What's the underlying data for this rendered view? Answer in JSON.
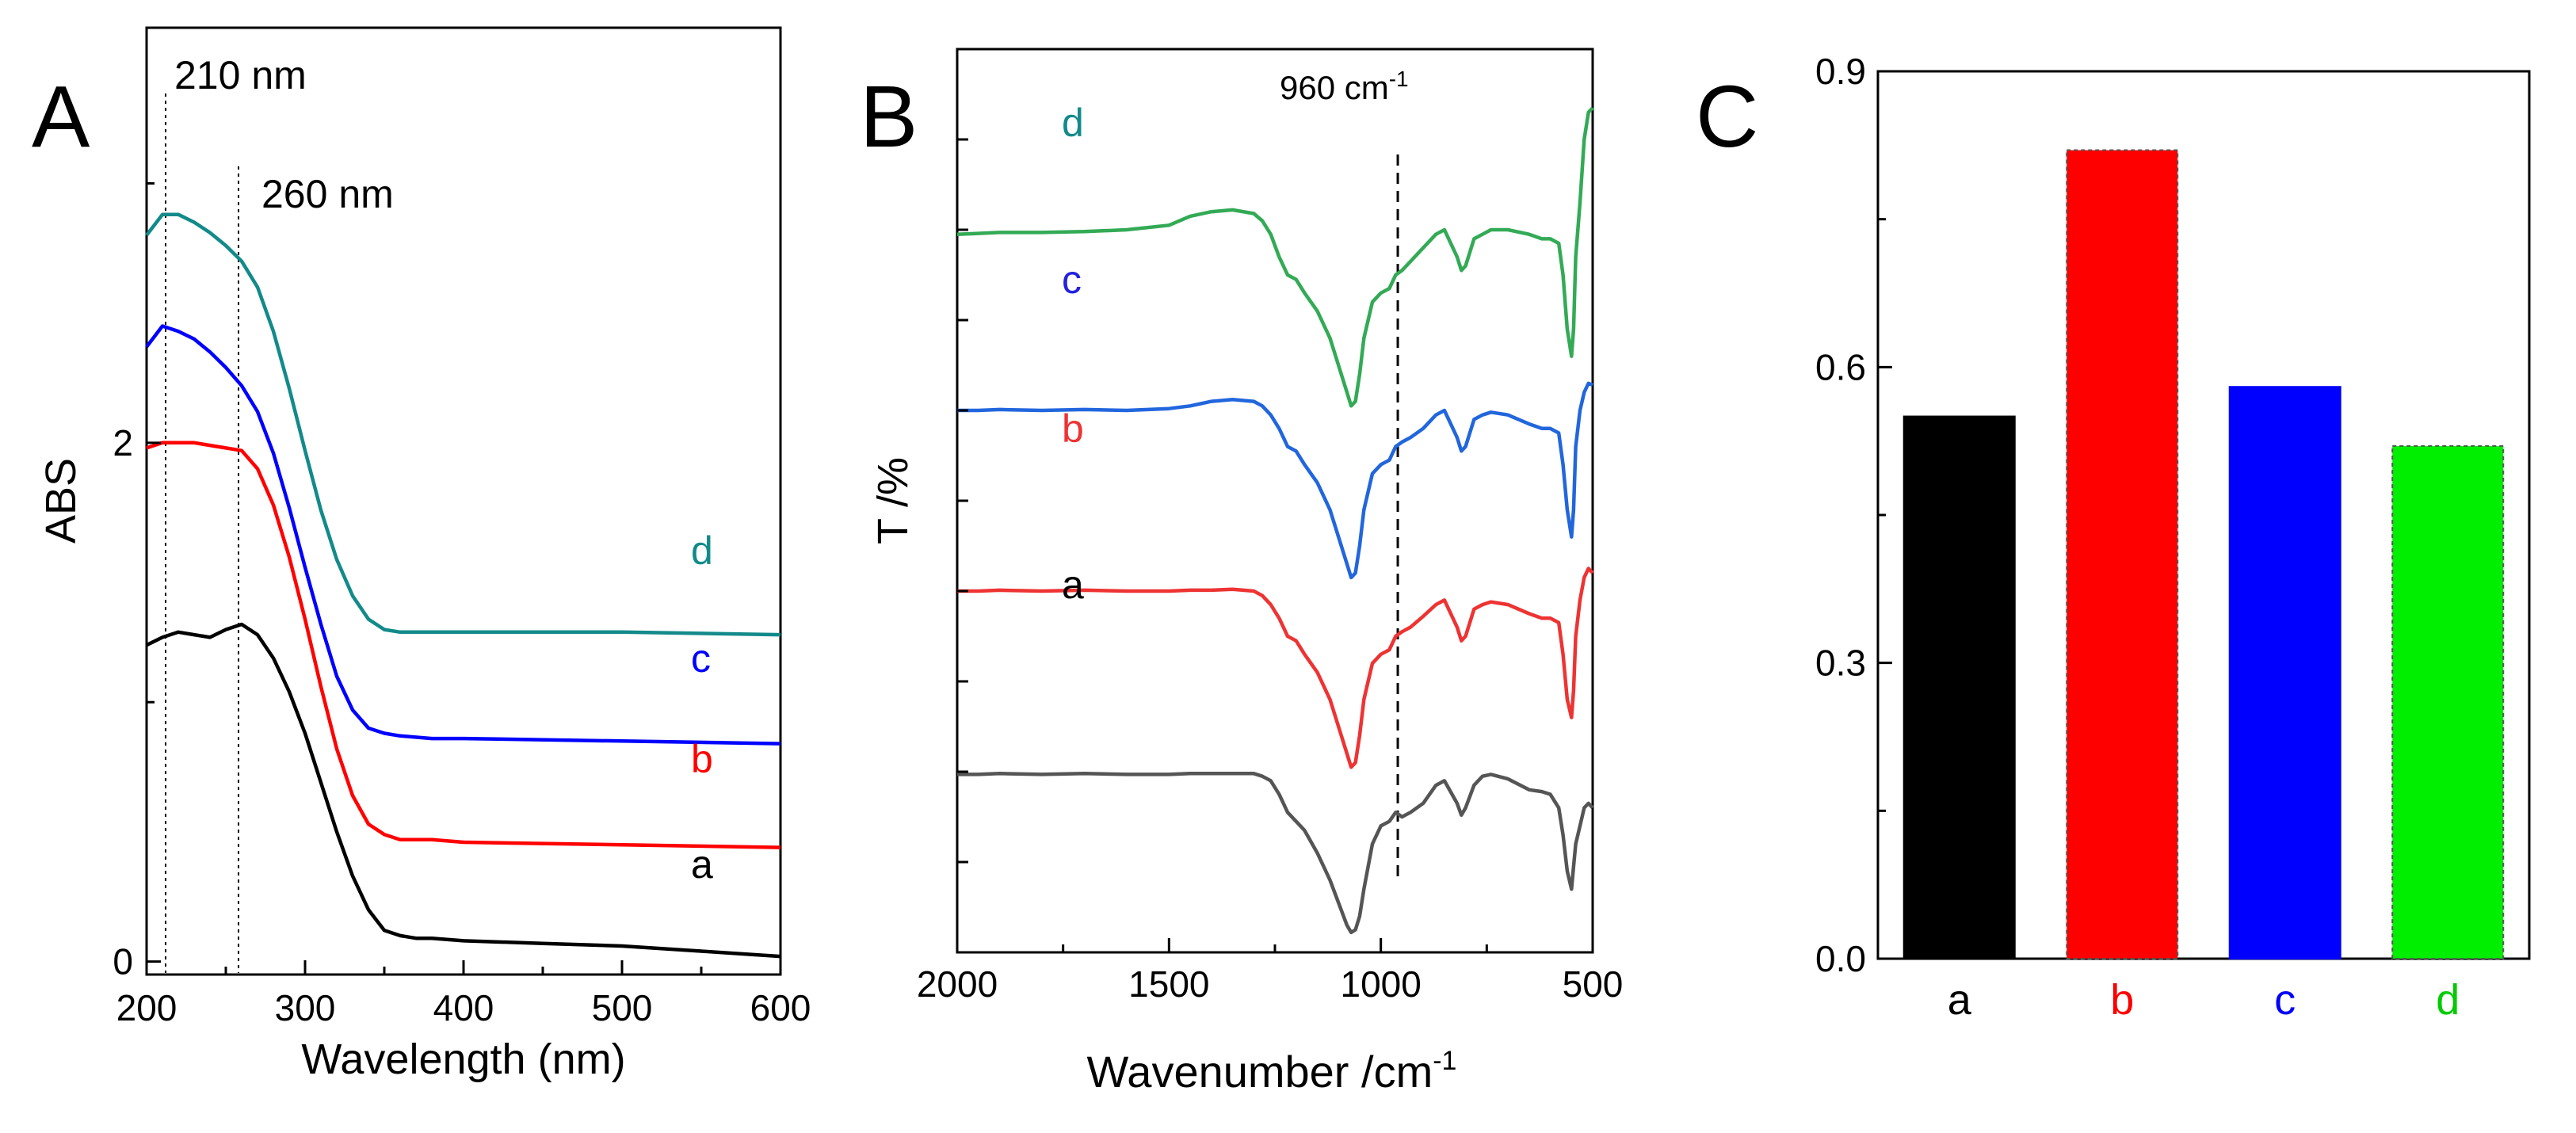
{
  "figure": {
    "panels": [
      {
        "id": "A",
        "type": "line",
        "label": "A"
      },
      {
        "id": "B",
        "type": "line",
        "label": "B"
      },
      {
        "id": "C",
        "type": "bar",
        "label": "C"
      }
    ]
  },
  "chart_data": [
    {
      "panel": "A",
      "type": "line",
      "title": "",
      "xlabel": "Wavelength (nm)",
      "ylabel": "ABS",
      "xlim": [
        200,
        600
      ],
      "ylim": [
        -0.05,
        3.6
      ],
      "xticks": [
        200,
        300,
        400,
        500,
        600
      ],
      "xtick_labels": [
        "200",
        "300",
        "400",
        "500",
        "600"
      ],
      "yticks": [
        0,
        2
      ],
      "ytick_labels": [
        "0",
        "2"
      ],
      "reference_lines": [
        {
          "x": 212,
          "label": "210 nm"
        },
        {
          "x": 258,
          "label": "260 nm"
        }
      ],
      "series": [
        {
          "name": "a",
          "color": "#000000",
          "x": [
            200,
            210,
            220,
            230,
            240,
            250,
            260,
            270,
            280,
            290,
            300,
            310,
            320,
            330,
            340,
            350,
            360,
            370,
            380,
            400,
            450,
            500,
            550,
            600
          ],
          "y": [
            1.22,
            1.25,
            1.27,
            1.26,
            1.25,
            1.28,
            1.3,
            1.26,
            1.17,
            1.04,
            0.88,
            0.69,
            0.5,
            0.33,
            0.2,
            0.12,
            0.1,
            0.09,
            0.09,
            0.08,
            0.07,
            0.06,
            0.04,
            0.02
          ]
        },
        {
          "name": "b",
          "color": "#ff0000",
          "x": [
            200,
            210,
            220,
            230,
            240,
            250,
            260,
            270,
            280,
            290,
            300,
            310,
            320,
            330,
            340,
            350,
            360,
            380,
            400,
            500,
            600
          ],
          "y": [
            1.98,
            2.0,
            2.0,
            2.0,
            1.99,
            1.98,
            1.97,
            1.9,
            1.76,
            1.56,
            1.32,
            1.06,
            0.82,
            0.64,
            0.53,
            0.49,
            0.47,
            0.47,
            0.46,
            0.45,
            0.44
          ]
        },
        {
          "name": "c",
          "color": "#0000ff",
          "x": [
            200,
            210,
            220,
            230,
            240,
            250,
            260,
            270,
            280,
            290,
            300,
            310,
            320,
            330,
            340,
            350,
            360,
            380,
            400,
            500,
            600
          ],
          "y": [
            2.37,
            2.45,
            2.43,
            2.4,
            2.35,
            2.29,
            2.22,
            2.12,
            1.96,
            1.75,
            1.52,
            1.3,
            1.1,
            0.97,
            0.9,
            0.88,
            0.87,
            0.86,
            0.86,
            0.85,
            0.84
          ]
        },
        {
          "name": "d",
          "color": "#138a8a",
          "x": [
            200,
            210,
            220,
            230,
            240,
            250,
            260,
            270,
            280,
            290,
            300,
            310,
            320,
            330,
            340,
            350,
            360,
            370,
            380,
            400,
            500,
            600
          ],
          "y": [
            2.8,
            2.88,
            2.88,
            2.85,
            2.81,
            2.76,
            2.7,
            2.6,
            2.43,
            2.21,
            1.97,
            1.74,
            1.55,
            1.41,
            1.32,
            1.28,
            1.27,
            1.27,
            1.27,
            1.27,
            1.27,
            1.26
          ]
        }
      ],
      "series_labels": [
        {
          "text": "a",
          "color": "#000000"
        },
        {
          "text": "b",
          "color": "#ff0000"
        },
        {
          "text": "c",
          "color": "#0000ff"
        },
        {
          "text": "d",
          "color": "#138a8a"
        }
      ]
    },
    {
      "panel": "B",
      "type": "line",
      "title": "",
      "xlabel": "Wavenumber /cm",
      "xlabel_superscript": "-1",
      "ylabel": "T /%",
      "xlim": [
        2000,
        500
      ],
      "ylim": [
        0,
        10
      ],
      "x_reversed": true,
      "xticks": [
        2000,
        1500,
        1000,
        500
      ],
      "xtick_labels": [
        "2000",
        "1500",
        "1000",
        "500"
      ],
      "reference_lines": [
        {
          "x": 960,
          "label": "960 cm",
          "label_superscript": "-1"
        }
      ],
      "series": [
        {
          "name": "a",
          "color": "#555555",
          "x": [
            2000,
            1950,
            1900,
            1800,
            1700,
            1600,
            1500,
            1450,
            1400,
            1350,
            1300,
            1280,
            1260,
            1240,
            1230,
            1220,
            1200,
            1180,
            1150,
            1120,
            1100,
            1080,
            1070,
            1060,
            1050,
            1040,
            1020,
            1000,
            980,
            965,
            950,
            930,
            900,
            870,
            850,
            820,
            810,
            800,
            780,
            760,
            740,
            700,
            650,
            620,
            600,
            580,
            570,
            560,
            550,
            545,
            540,
            530,
            520,
            510,
            500
          ],
          "y": [
            1.97,
            1.97,
            1.98,
            1.97,
            1.98,
            1.97,
            1.97,
            1.98,
            1.98,
            1.98,
            1.98,
            1.95,
            1.9,
            1.75,
            1.65,
            1.55,
            1.45,
            1.35,
            1.1,
            0.8,
            0.55,
            0.3,
            0.22,
            0.25,
            0.4,
            0.7,
            1.2,
            1.4,
            1.45,
            1.55,
            1.5,
            1.55,
            1.65,
            1.85,
            1.9,
            1.65,
            1.52,
            1.6,
            1.85,
            1.95,
            1.97,
            1.92,
            1.8,
            1.78,
            1.75,
            1.6,
            1.3,
            0.9,
            0.7,
            0.95,
            1.2,
            1.4,
            1.6,
            1.65,
            1.6
          ]
        },
        {
          "name": "b",
          "color": "#ee3333",
          "x": [
            2000,
            1950,
            1900,
            1800,
            1700,
            1600,
            1500,
            1450,
            1400,
            1350,
            1300,
            1280,
            1260,
            1240,
            1230,
            1220,
            1200,
            1180,
            1150,
            1120,
            1100,
            1080,
            1070,
            1060,
            1050,
            1040,
            1020,
            1000,
            980,
            965,
            950,
            930,
            900,
            870,
            850,
            820,
            810,
            800,
            780,
            760,
            740,
            700,
            650,
            620,
            600,
            580,
            570,
            560,
            550,
            545,
            540,
            530,
            520,
            510,
            500
          ],
          "y": [
            4.0,
            4.0,
            4.01,
            4.0,
            4.01,
            4.0,
            4.0,
            4.01,
            4.01,
            4.02,
            4.0,
            3.95,
            3.85,
            3.7,
            3.6,
            3.5,
            3.45,
            3.3,
            3.1,
            2.8,
            2.5,
            2.2,
            2.05,
            2.1,
            2.4,
            2.8,
            3.2,
            3.3,
            3.35,
            3.5,
            3.55,
            3.6,
            3.72,
            3.85,
            3.9,
            3.6,
            3.45,
            3.5,
            3.8,
            3.85,
            3.88,
            3.85,
            3.75,
            3.7,
            3.7,
            3.65,
            3.3,
            2.8,
            2.6,
            2.9,
            3.5,
            3.9,
            4.15,
            4.25,
            4.2
          ]
        },
        {
          "name": "c",
          "color": "#2266dd",
          "x": [
            2000,
            1950,
            1900,
            1800,
            1700,
            1600,
            1500,
            1450,
            1400,
            1350,
            1300,
            1280,
            1260,
            1240,
            1230,
            1220,
            1200,
            1180,
            1150,
            1120,
            1100,
            1080,
            1070,
            1060,
            1050,
            1040,
            1020,
            1000,
            980,
            965,
            950,
            930,
            900,
            870,
            850,
            820,
            810,
            800,
            780,
            760,
            740,
            700,
            650,
            620,
            600,
            580,
            570,
            560,
            550,
            545,
            540,
            530,
            520,
            510,
            500
          ],
          "y": [
            6.0,
            6.0,
            6.01,
            6.0,
            6.01,
            6.0,
            6.02,
            6.05,
            6.1,
            6.12,
            6.1,
            6.05,
            5.95,
            5.8,
            5.7,
            5.6,
            5.55,
            5.4,
            5.2,
            4.9,
            4.6,
            4.3,
            4.15,
            4.2,
            4.5,
            4.9,
            5.3,
            5.4,
            5.45,
            5.6,
            5.65,
            5.7,
            5.8,
            5.95,
            6.0,
            5.7,
            5.55,
            5.6,
            5.9,
            5.95,
            5.98,
            5.95,
            5.85,
            5.8,
            5.8,
            5.75,
            5.4,
            4.9,
            4.6,
            4.9,
            5.6,
            6.0,
            6.2,
            6.3,
            6.28
          ]
        },
        {
          "name": "d",
          "color": "#33aa55",
          "x": [
            2000,
            1950,
            1900,
            1800,
            1700,
            1600,
            1500,
            1450,
            1400,
            1350,
            1300,
            1280,
            1260,
            1240,
            1230,
            1220,
            1200,
            1180,
            1150,
            1120,
            1100,
            1080,
            1070,
            1060,
            1050,
            1040,
            1020,
            1000,
            980,
            965,
            950,
            930,
            900,
            870,
            850,
            820,
            810,
            800,
            780,
            760,
            740,
            700,
            650,
            620,
            600,
            580,
            570,
            560,
            550,
            545,
            540,
            530,
            520,
            510,
            500
          ],
          "y": [
            7.95,
            7.96,
            7.97,
            7.97,
            7.98,
            8.0,
            8.05,
            8.15,
            8.2,
            8.22,
            8.18,
            8.1,
            7.95,
            7.7,
            7.6,
            7.5,
            7.45,
            7.3,
            7.1,
            6.8,
            6.5,
            6.2,
            6.05,
            6.1,
            6.4,
            6.8,
            7.2,
            7.3,
            7.35,
            7.5,
            7.55,
            7.65,
            7.8,
            7.95,
            8.0,
            7.7,
            7.55,
            7.6,
            7.9,
            7.95,
            8.0,
            8.0,
            7.95,
            7.9,
            7.9,
            7.85,
            7.5,
            6.9,
            6.6,
            6.9,
            7.7,
            8.3,
            9.0,
            9.3,
            9.35
          ]
        }
      ],
      "series_labels": [
        {
          "text": "a",
          "color": "#000000"
        },
        {
          "text": "b",
          "color": "#ee3333"
        },
        {
          "text": "c",
          "color": "#2222dd"
        },
        {
          "text": "d",
          "color": "#138a8a"
        }
      ]
    },
    {
      "panel": "C",
      "type": "bar",
      "title": "",
      "xlabel": "",
      "ylabel": "",
      "ylim": [
        0,
        0.9
      ],
      "yticks": [
        0.0,
        0.3,
        0.6,
        0.9
      ],
      "ytick_labels": [
        "0.0",
        "0.3",
        "0.6",
        "0.9"
      ],
      "categories": [
        "a",
        "b",
        "c",
        "d"
      ],
      "values": [
        0.55,
        0.82,
        0.58,
        0.52
      ],
      "colors": [
        "#000000",
        "#ff0000",
        "#0000ff",
        "#00ee00"
      ],
      "label_colors": [
        "#000000",
        "#ff0000",
        "#0000ff",
        "#00cc00"
      ]
    }
  ]
}
